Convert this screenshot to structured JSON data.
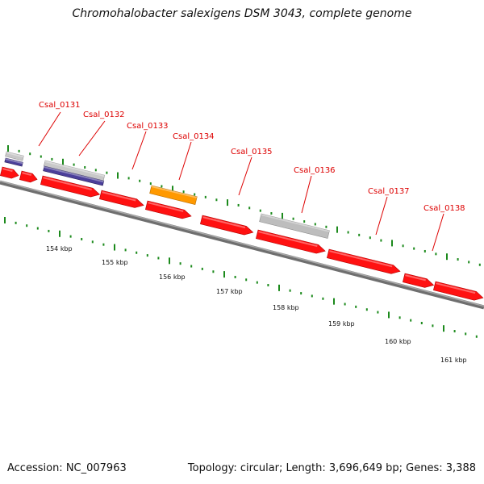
{
  "title": "Chromohalobacter salexigens DSM 3043, complete genome",
  "footer": {
    "accession": "Accession: NC_007963",
    "topology": "Topology: circular; Length: 3,696,649 bp; Genes: 3,388"
  },
  "colors": {
    "cds": "#ff1111",
    "backbone": "#8c8c8c",
    "trna_or_feature_blue": "#4b3f9a",
    "gray_feature": "#bdbdbd",
    "orange_feature": "#ff9900",
    "tick": "#1c8a1c",
    "label": "#dd0000"
  },
  "scale_labels": [
    "154 kbp",
    "155 kbp",
    "156 kbp",
    "157 kbp",
    "158 kbp",
    "159 kbp",
    "160 kbp",
    "161 kbp"
  ],
  "gene_labels": [
    "Csal_0131",
    "Csal_0132",
    "Csal_0133",
    "Csal_0134",
    "Csal_0135",
    "Csal_0136",
    "Csal_0137",
    "Csal_0138"
  ]
}
